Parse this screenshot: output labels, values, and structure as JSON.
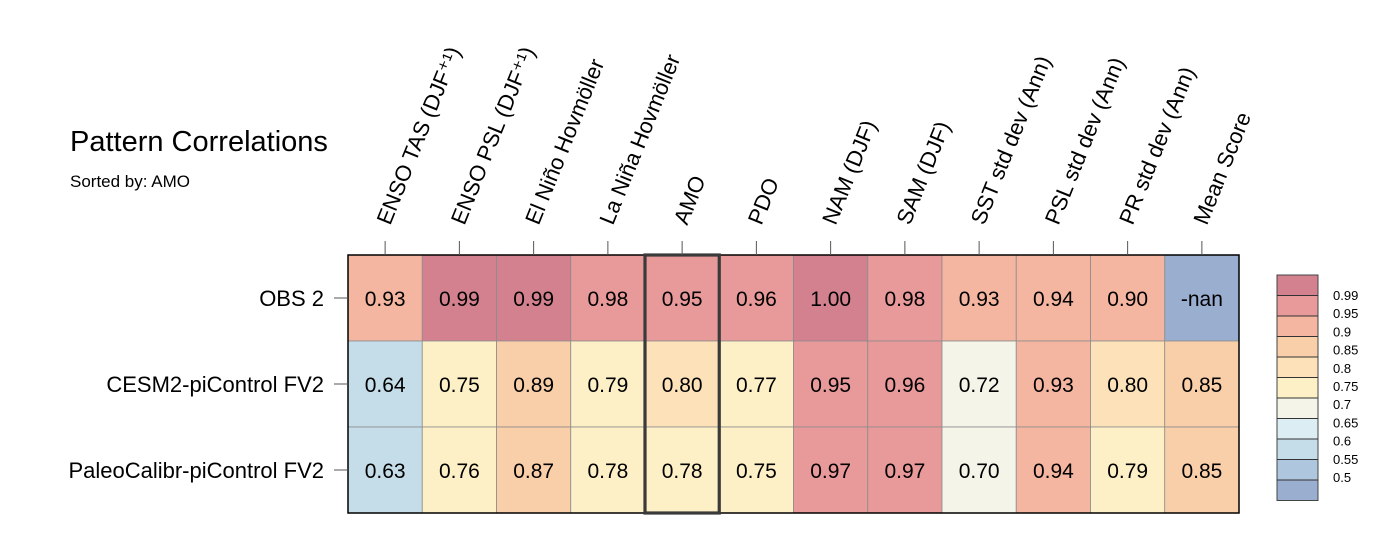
{
  "header": {
    "title": "Pattern Correlations",
    "subtitle": "Sorted by: AMO"
  },
  "chart_data": {
    "type": "heatmap",
    "title": "Pattern Correlations",
    "subtitle": "Sorted by: AMO",
    "sorted_by": "AMO",
    "highlighted_column": "AMO",
    "columns": [
      "ENSO TAS (DJF⁺¹)",
      "ENSO PSL (DJF⁺¹)",
      "El Niño Hovmöller",
      "La Niña Hovmöller",
      "AMO",
      "PDO",
      "NAM (DJF)",
      "SAM (DJF)",
      "SST std dev (Ann)",
      "PSL std dev (Ann)",
      "PR std dev (Ann)",
      "Mean Score"
    ],
    "rows": [
      "OBS 2",
      "CESM2-piControl FV2",
      "PaleoCalibr-piControl FV2"
    ],
    "values": [
      [
        0.93,
        0.99,
        0.99,
        0.98,
        0.95,
        0.96,
        1.0,
        0.98,
        0.93,
        0.94,
        0.9,
        null
      ],
      [
        0.64,
        0.75,
        0.89,
        0.79,
        0.8,
        0.77,
        0.95,
        0.96,
        0.72,
        0.93,
        0.8,
        0.85
      ],
      [
        0.63,
        0.76,
        0.87,
        0.78,
        0.78,
        0.75,
        0.97,
        0.97,
        0.7,
        0.94,
        0.79,
        0.85
      ]
    ],
    "labels": [
      [
        "0.93",
        "0.99",
        "0.99",
        "0.98",
        "0.95",
        "0.96",
        "1.00",
        "0.98",
        "0.93",
        "0.94",
        "0.90",
        "-nan"
      ],
      [
        "0.64",
        "0.75",
        "0.89",
        "0.79",
        "0.80",
        "0.77",
        "0.95",
        "0.96",
        "0.72",
        "0.93",
        "0.80",
        "0.85"
      ],
      [
        "0.63",
        "0.76",
        "0.87",
        "0.78",
        "0.78",
        "0.75",
        "0.97",
        "0.97",
        "0.70",
        "0.94",
        "0.79",
        "0.85"
      ]
    ],
    "nan_color": "#9aaed0",
    "colorbar": {
      "labels": [
        "0.99",
        "0.95",
        "0.9",
        "0.85",
        "0.8",
        "0.75",
        "0.7",
        "0.65",
        "0.6",
        "0.55",
        "0.5"
      ],
      "levels": [
        0.99,
        0.95,
        0.9,
        0.85,
        0.8,
        0.75,
        0.7,
        0.65,
        0.6,
        0.55,
        0.5
      ],
      "colors": [
        "#d4818f",
        "#e8999a",
        "#f4b6a0",
        "#f9cfa9",
        "#fce1b9",
        "#fdf0c7",
        "#f4f4e9",
        "#dcedf4",
        "#c5dde9",
        "#afc6df",
        "#9aaed0"
      ]
    }
  }
}
